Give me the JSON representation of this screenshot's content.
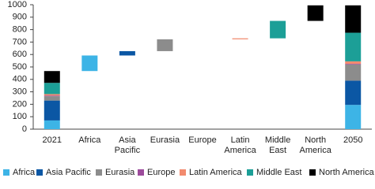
{
  "chart_data": {
    "type": "waterfall",
    "categories": [
      "2021",
      "Africa",
      "Asia Pacific",
      "Eurasia",
      "Europe",
      "Latin America",
      "Middle East",
      "North America",
      "2050"
    ],
    "series": [
      {
        "name": "Africa",
        "color": "#3db4e6",
        "values": [
          70,
          125,
          null,
          null,
          null,
          null,
          null,
          null,
          195
        ]
      },
      {
        "name": "Asia Pacific",
        "color": "#0b57a4",
        "values": [
          160,
          null,
          35,
          null,
          null,
          null,
          null,
          null,
          195
        ]
      },
      {
        "name": "Eurasia",
        "color": "#8c8c8c",
        "values": [
          35,
          null,
          null,
          95,
          null,
          null,
          null,
          null,
          130
        ]
      },
      {
        "name": "Europe",
        "color": "#9c4b9b",
        "values": [
          5,
          null,
          null,
          null,
          0,
          null,
          null,
          null,
          5
        ]
      },
      {
        "name": "Latin America",
        "color": "#f28b6f",
        "values": [
          12,
          null,
          null,
          null,
          null,
          8,
          null,
          null,
          20
        ]
      },
      {
        "name": "Middle East",
        "color": "#1c9f97",
        "values": [
          90,
          null,
          null,
          null,
          null,
          null,
          140,
          null,
          230
        ]
      },
      {
        "name": "North America",
        "color": "#000000",
        "values": [
          95,
          null,
          null,
          null,
          null,
          null,
          null,
          125,
          220
        ]
      }
    ],
    "ylim": [
      0,
      1000
    ],
    "yticks": [
      0,
      100,
      200,
      300,
      400,
      500,
      600,
      700,
      800,
      900,
      1000
    ],
    "grid": false,
    "legend": "bottom"
  }
}
